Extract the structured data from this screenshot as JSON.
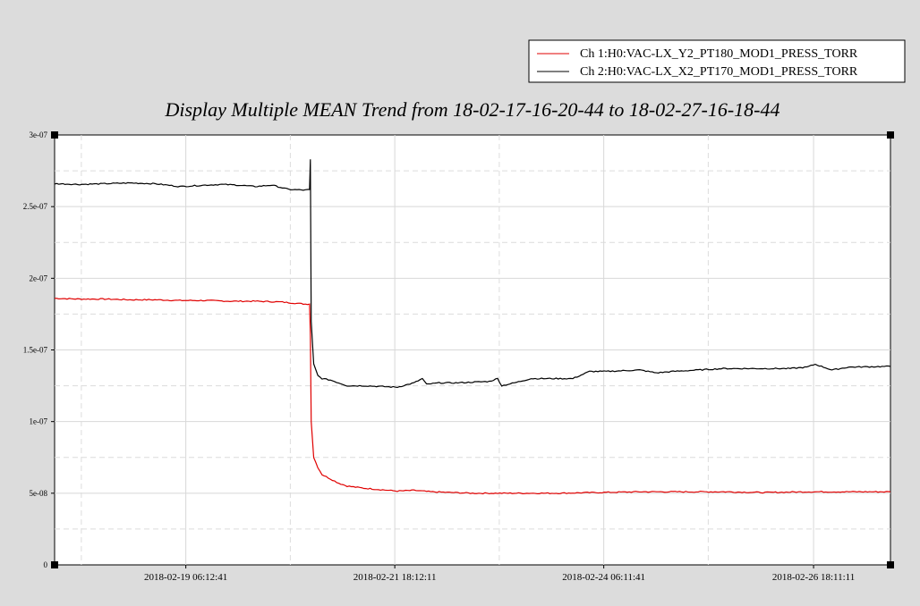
{
  "chart_data": {
    "type": "line",
    "title": "Display Multiple MEAN Trend from 18-02-17-16-20-44 to 18-02-27-16-18-44",
    "xlabel": "",
    "ylabel": "",
    "xlim": [
      0,
      1
    ],
    "ylim": [
      0,
      3e-07
    ],
    "grid": true,
    "legend_position": "top-right",
    "y_ticks": [
      {
        "value": 0,
        "label": "0"
      },
      {
        "value": 5e-08,
        "label": "5e-08"
      },
      {
        "value": 1e-07,
        "label": "1e-07"
      },
      {
        "value": 1.5e-07,
        "label": "1.5e-07"
      },
      {
        "value": 2e-07,
        "label": "2e-07"
      },
      {
        "value": 2.5e-07,
        "label": "2.5e-07"
      },
      {
        "value": 3e-07,
        "label": "3e-07"
      }
    ],
    "x_ticks": [
      {
        "value": 0.157,
        "label": "2018-02-19 06:12:41"
      },
      {
        "value": 0.407,
        "label": "2018-02-21 18:12:11"
      },
      {
        "value": 0.657,
        "label": "2018-02-24 06:11:41"
      },
      {
        "value": 0.908,
        "label": "2018-02-26 18:11:11"
      }
    ],
    "x_minor_grid": [
      0.032,
      0.282,
      0.532,
      0.782
    ],
    "series": [
      {
        "name": "Ch 1:H0:VAC-LX_Y2_PT180_MOD1_PRESS_TORR",
        "color": "#e00000",
        "x": [
          0,
          0.03,
          0.06,
          0.09,
          0.12,
          0.15,
          0.18,
          0.21,
          0.24,
          0.27,
          0.3,
          0.305,
          0.306,
          0.307,
          0.31,
          0.315,
          0.32,
          0.33,
          0.34,
          0.35,
          0.37,
          0.39,
          0.41,
          0.43,
          0.45,
          0.5,
          0.55,
          0.6,
          0.65,
          0.7,
          0.75,
          0.8,
          0.85,
          0.9,
          0.95,
          1.0
        ],
        "values": [
          1.86e-07,
          1.855e-07,
          1.855e-07,
          1.85e-07,
          1.85e-07,
          1.845e-07,
          1.845e-07,
          1.84e-07,
          1.84e-07,
          1.835e-07,
          1.82e-07,
          1.82e-07,
          1.6e-07,
          1e-07,
          7.5e-08,
          6.8e-08,
          6.3e-08,
          6e-08,
          5.7e-08,
          5.5e-08,
          5.35e-08,
          5.25e-08,
          5.15e-08,
          5.2e-08,
          5.1e-08,
          5e-08,
          5e-08,
          5e-08,
          5.05e-08,
          5.1e-08,
          5.1e-08,
          5.1e-08,
          5.05e-08,
          5.1e-08,
          5.1e-08,
          5.1e-08
        ]
      },
      {
        "name": "Ch 2:H0:VAC-LX_X2_PT170_MOD1_PRESS_TORR",
        "color": "#000000",
        "x": [
          0,
          0.03,
          0.06,
          0.09,
          0.12,
          0.15,
          0.18,
          0.2,
          0.22,
          0.24,
          0.26,
          0.28,
          0.3,
          0.305,
          0.306,
          0.307,
          0.31,
          0.315,
          0.32,
          0.33,
          0.34,
          0.35,
          0.37,
          0.39,
          0.41,
          0.43,
          0.44,
          0.445,
          0.46,
          0.48,
          0.5,
          0.52,
          0.53,
          0.535,
          0.55,
          0.57,
          0.6,
          0.62,
          0.64,
          0.66,
          0.7,
          0.72,
          0.74,
          0.77,
          0.8,
          0.85,
          0.88,
          0.9,
          0.91,
          0.93,
          0.95,
          1.0
        ],
        "values": [
          2.66e-07,
          2.655e-07,
          2.66e-07,
          2.665e-07,
          2.66e-07,
          2.64e-07,
          2.65e-07,
          2.655e-07,
          2.65e-07,
          2.64e-07,
          2.65e-07,
          2.62e-07,
          2.615e-07,
          2.62e-07,
          2.83e-07,
          1.7e-07,
          1.4e-07,
          1.32e-07,
          1.3e-07,
          1.29e-07,
          1.27e-07,
          1.25e-07,
          1.25e-07,
          1.245e-07,
          1.24e-07,
          1.27e-07,
          1.3e-07,
          1.26e-07,
          1.27e-07,
          1.27e-07,
          1.275e-07,
          1.28e-07,
          1.3e-07,
          1.25e-07,
          1.27e-07,
          1.3e-07,
          1.3e-07,
          1.3e-07,
          1.35e-07,
          1.35e-07,
          1.36e-07,
          1.34e-07,
          1.35e-07,
          1.36e-07,
          1.37e-07,
          1.37e-07,
          1.37e-07,
          1.38e-07,
          1.4e-07,
          1.36e-07,
          1.38e-07,
          1.385e-07
        ]
      }
    ]
  }
}
